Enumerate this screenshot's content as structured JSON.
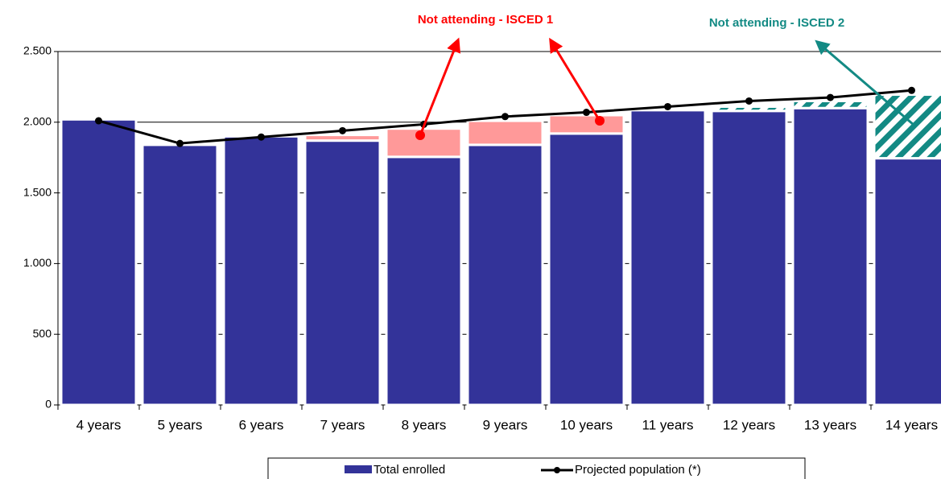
{
  "chart_data": {
    "type": "bar",
    "categories": [
      "4 years",
      "5 years",
      "6 years",
      "7 years",
      "8 years",
      "9 years",
      "10 years",
      "11 years",
      "12 years",
      "13 years",
      "14 years"
    ],
    "series": [
      {
        "name": "Total enrolled",
        "type": "bar",
        "color": "#333399",
        "values": [
          2020,
          1840,
          1900,
          1870,
          1755,
          1840,
          1920,
          2085,
          2080,
          2100,
          1745
        ]
      },
      {
        "name": "Not attending - ISCED 1",
        "type": "bar",
        "stack": true,
        "color": "#ff9999",
        "values": [
          null,
          null,
          null,
          40,
          200,
          170,
          130,
          null,
          null,
          null,
          null
        ]
      },
      {
        "name": "Not attending - ISCED 2",
        "type": "bar",
        "stack": true,
        "hatch": true,
        "color": "#138a84",
        "values": [
          null,
          null,
          null,
          null,
          null,
          null,
          null,
          null,
          30,
          50,
          450
        ]
      },
      {
        "name": "Projected population (*)",
        "type": "line",
        "color": "#000000",
        "values": [
          2010,
          1850,
          1895,
          1940,
          1985,
          2040,
          2070,
          2110,
          2150,
          2175,
          2225
        ]
      }
    ],
    "ylim": [
      0,
      2500
    ],
    "yticks": [
      0,
      500,
      {
        "value": 1000,
        "label": "1.000"
      },
      {
        "value": 1500,
        "label": "1.500"
      },
      {
        "value": 2000,
        "label": "2.000"
      },
      {
        "value": 2500,
        "label": "2.500"
      }
    ],
    "grid": true,
    "legend": "bottom"
  }
}
